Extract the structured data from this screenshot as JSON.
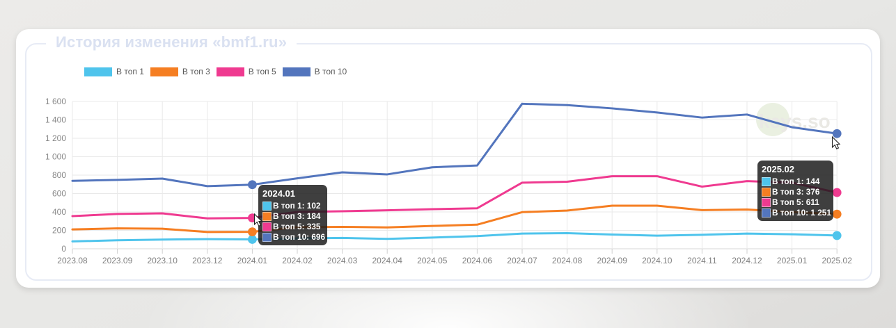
{
  "page": {
    "title": "История изменения «bmf1.ru»"
  },
  "watermark": {
    "text": "keys.so",
    "circle_color": "#eaf0e1",
    "text_color": "#eae9e4"
  },
  "chart_data": {
    "type": "line",
    "x": [
      "2023.08",
      "2023.09",
      "2023.10",
      "2023.12",
      "2024.01",
      "2024.02",
      "2024.03",
      "2024.04",
      "2024.05",
      "2024.06",
      "2024.07",
      "2024.08",
      "2024.09",
      "2024.10",
      "2024.11",
      "2024.12",
      "2025.01",
      "2025.02"
    ],
    "series": [
      {
        "name": "В топ 1",
        "color": "#4fc4ec",
        "values": [
          80,
          92,
          100,
          105,
          102,
          112,
          118,
          108,
          122,
          138,
          165,
          170,
          155,
          142,
          152,
          165,
          158,
          144
        ]
      },
      {
        "name": "В топ 3",
        "color": "#f57e22",
        "values": [
          210,
          222,
          218,
          182,
          184,
          235,
          238,
          232,
          248,
          262,
          398,
          415,
          468,
          468,
          420,
          426,
          400,
          376
        ]
      },
      {
        "name": "В топ 5",
        "color": "#ef3a90",
        "values": [
          355,
          378,
          385,
          330,
          335,
          400,
          408,
          418,
          430,
          440,
          718,
          728,
          788,
          788,
          675,
          735,
          718,
          611
        ]
      },
      {
        "name": "В топ 10",
        "color": "#5375bd",
        "values": [
          738,
          748,
          762,
          680,
          696,
          765,
          830,
          808,
          885,
          905,
          1575,
          1560,
          1525,
          1480,
          1425,
          1458,
          1320,
          1251
        ]
      }
    ],
    "ylim": [
      0,
      1600
    ],
    "ytick": 200,
    "grid": true,
    "legend_position": "top-left",
    "title": "История изменения «bmf1.ru»"
  },
  "tooltips": [
    {
      "title": "2024.01",
      "index": 4,
      "rows": [
        {
          "series": "В топ 1",
          "value": "102"
        },
        {
          "series": "В топ 3",
          "value": "184"
        },
        {
          "series": "В топ 5",
          "value": "335"
        },
        {
          "series": "В топ 10",
          "value": "696"
        }
      ]
    },
    {
      "title": "2025.02",
      "index": 17,
      "rows": [
        {
          "series": "В топ 1",
          "value": "144"
        },
        {
          "series": "В топ 3",
          "value": "376"
        },
        {
          "series": "В топ 5",
          "value": "611"
        },
        {
          "series": "В топ 10",
          "value": "1 251"
        }
      ]
    }
  ]
}
